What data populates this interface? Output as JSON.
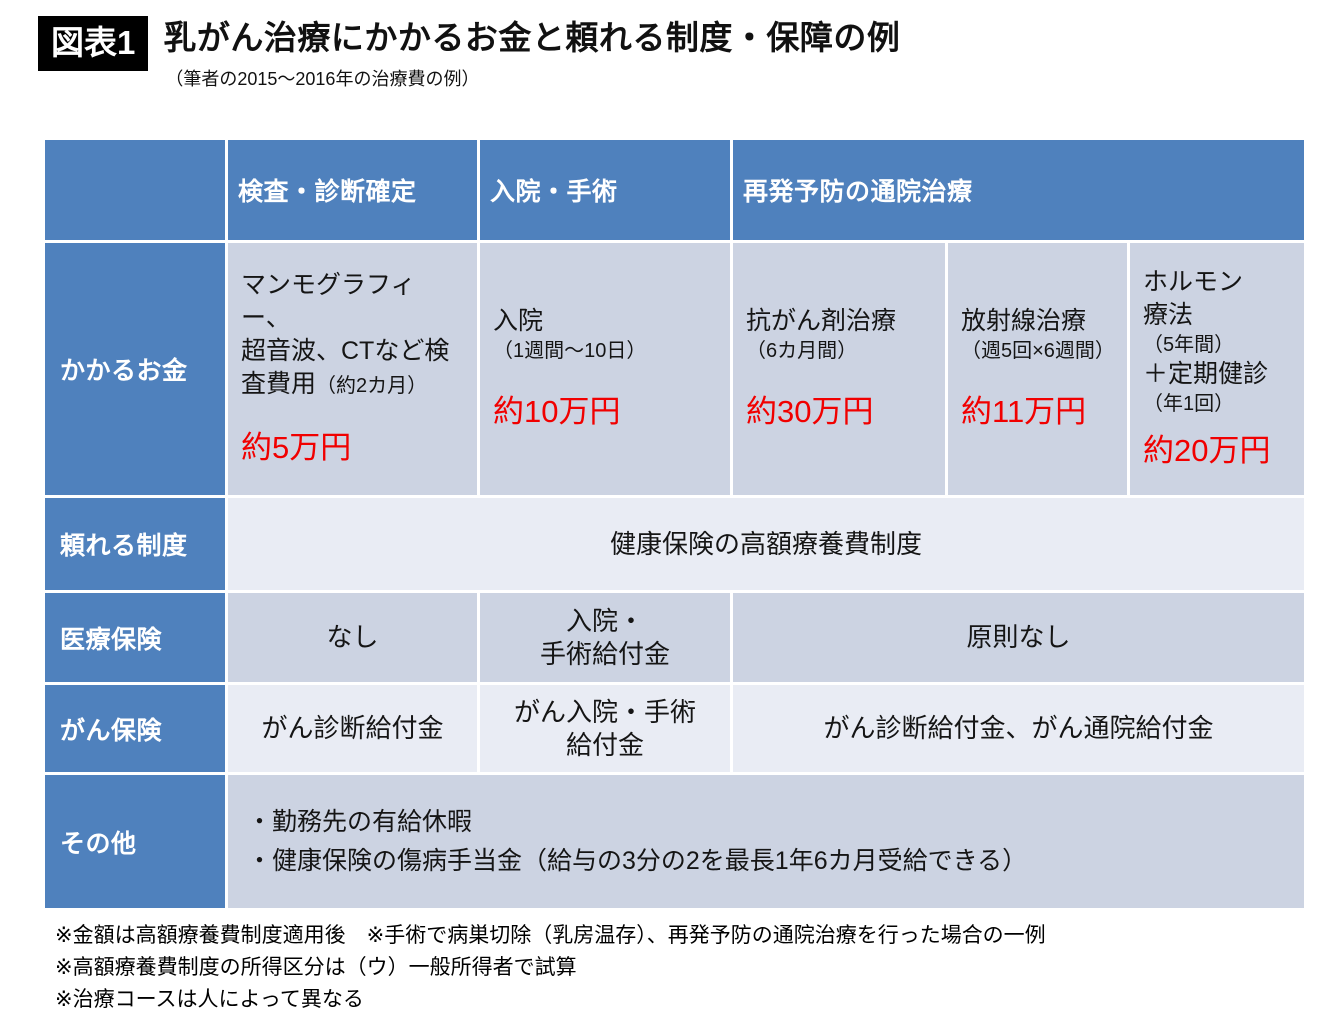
{
  "figure": {
    "badge": "図表1",
    "title": "乳がん治療にかかるお金と頼れる制度・保障の例",
    "subtitle": "（筆者の2015〜2016年の治療費の例）"
  },
  "colors": {
    "header_blue": "#4f81bd",
    "band_dark": "#ccd3e2",
    "band_light": "#e9ecf4",
    "price_red": "#f10000",
    "badge_black": "#000000"
  },
  "table": {
    "columns": {
      "exam": "検査・診断確定",
      "hospital": "入院・手術",
      "outpatient": "再発予防の通院治療"
    },
    "cost": {
      "label": "かかるお金",
      "exam": {
        "l1": "マンモグラフィー、",
        "l2": "超音波、CTなど検",
        "l3": "査費用",
        "note": "（約2カ月）",
        "price": "約5万円"
      },
      "hospital": {
        "l1": "入院",
        "note": "（1週間〜10日）",
        "price": "約10万円"
      },
      "chemo": {
        "l1": "抗がん剤治療",
        "note": "（6カ月間）",
        "price": "約30万円"
      },
      "radiation": {
        "l1": "放射線治療",
        "note": "（週5回×6週間）",
        "price": "約11万円"
      },
      "hormone": {
        "l1": "ホルモン",
        "l2": "療法",
        "note": "（5年間）",
        "l3": "＋定期健診",
        "note2": "（年1回）",
        "price": "約20万円"
      }
    },
    "system": {
      "label": "頼れる制度",
      "all": "健康保険の高額療養費制度"
    },
    "medical": {
      "label": "医療保険",
      "exam": "なし",
      "hospital_l1": "入院・",
      "hospital_l2": "手術給付金",
      "outpatient": "原則なし"
    },
    "cancer": {
      "label": "がん保険",
      "exam": "がん診断給付金",
      "hospital_l1": "がん入院・手術",
      "hospital_l2": "給付金",
      "outpatient": "がん診断給付金、がん通院給付金"
    },
    "other": {
      "label": "その他",
      "line1": "・勤務先の有給休暇",
      "line2": "・健康保険の傷病手当金（給与の3分の2を最長1年6カ月受給できる）"
    }
  },
  "footnotes": [
    "※金額は高額療養費制度適用後　※手術で病巣切除（乳房温存）、再発予防の通院治療を行った場合の一例",
    "※高額療養費制度の所得区分は（ウ）一般所得者で試算",
    "※治療コースは人によって異なる"
  ]
}
